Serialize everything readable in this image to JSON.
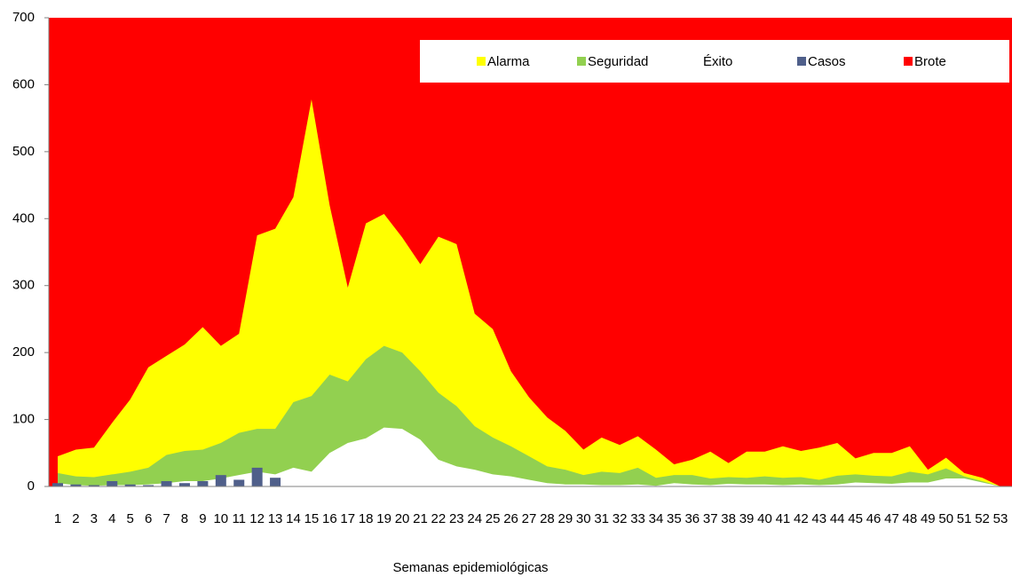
{
  "chart_data": {
    "type": "area",
    "x_label": "Semanas epidemiológicas",
    "categories": [
      "1",
      "2",
      "3",
      "4",
      "5",
      "6",
      "7",
      "8",
      "9",
      "10",
      "11",
      "12",
      "13",
      "14",
      "15",
      "16",
      "17",
      "18",
      "19",
      "20",
      "21",
      "22",
      "23",
      "24",
      "25",
      "26",
      "27",
      "28",
      "29",
      "30",
      "31",
      "32",
      "33",
      "34",
      "35",
      "36",
      "37",
      "38",
      "39",
      "40",
      "41",
      "42",
      "43",
      "44",
      "45",
      "46",
      "47",
      "48",
      "49",
      "50",
      "51",
      "52",
      "53"
    ],
    "ylim": [
      0,
      700
    ],
    "yticks": [
      0,
      100,
      200,
      300,
      400,
      500,
      600,
      700
    ],
    "legend": "top-right",
    "series": [
      {
        "name": "Alarma",
        "type": "area",
        "color": "#ffff00",
        "values": [
          45,
          55,
          58,
          95,
          130,
          178,
          195,
          212,
          238,
          210,
          228,
          375,
          385,
          432,
          578,
          420,
          297,
          393,
          407,
          372,
          332,
          373,
          362,
          258,
          235,
          172,
          133,
          103,
          83,
          55,
          73,
          62,
          75,
          55,
          33,
          40,
          52,
          35,
          52,
          52,
          60,
          53,
          58,
          65,
          42,
          50,
          50,
          60,
          25,
          43,
          20,
          13,
          0
        ]
      },
      {
        "name": "Seguridad",
        "type": "area",
        "color": "#92d050",
        "values": [
          20,
          15,
          14,
          18,
          22,
          28,
          47,
          53,
          55,
          65,
          80,
          86,
          86,
          126,
          135,
          167,
          157,
          190,
          210,
          200,
          172,
          140,
          120,
          90,
          73,
          60,
          45,
          30,
          25,
          17,
          22,
          20,
          28,
          13,
          17,
          17,
          12,
          14,
          13,
          15,
          13,
          14,
          10,
          16,
          18,
          16,
          15,
          22,
          18,
          27,
          15,
          8,
          0
        ]
      },
      {
        "name": "Éxito",
        "type": "area",
        "color": "#ffffff",
        "values": [
          5,
          2,
          1,
          2,
          2,
          3,
          5,
          8,
          8,
          12,
          17,
          22,
          18,
          28,
          22,
          50,
          65,
          72,
          88,
          86,
          70,
          40,
          30,
          25,
          18,
          15,
          10,
          5,
          3,
          3,
          2,
          2,
          3,
          1,
          5,
          3,
          2,
          4,
          3,
          3,
          2,
          3,
          2,
          3,
          6,
          5,
          4,
          6,
          6,
          12,
          12,
          6,
          0
        ]
      },
      {
        "name": "Casos",
        "type": "bar",
        "color": "#4f5f8a",
        "values": [
          5,
          3,
          2,
          8,
          3,
          2,
          8,
          5,
          8,
          17,
          10,
          28,
          13,
          null,
          null,
          null,
          null,
          null,
          null,
          null,
          null,
          null,
          null,
          null,
          null,
          null,
          null,
          null,
          null,
          null,
          null,
          null,
          null,
          null,
          null,
          null,
          null,
          null,
          null,
          null,
          null,
          null,
          null,
          null,
          null,
          null,
          null,
          null,
          null,
          null,
          null,
          null,
          null
        ]
      },
      {
        "name": "Brote",
        "type": "area",
        "color": "#ff0000",
        "values": [
          700,
          700,
          700,
          700,
          700,
          700,
          700,
          700,
          700,
          700,
          700,
          700,
          700,
          700,
          700,
          700,
          700,
          700,
          700,
          700,
          700,
          700,
          700,
          700,
          700,
          700,
          700,
          700,
          700,
          700,
          700,
          700,
          700,
          700,
          700,
          700,
          700,
          700,
          700,
          700,
          700,
          700,
          700,
          700,
          700,
          700,
          700,
          700,
          700,
          700,
          700,
          700,
          700
        ]
      }
    ]
  }
}
